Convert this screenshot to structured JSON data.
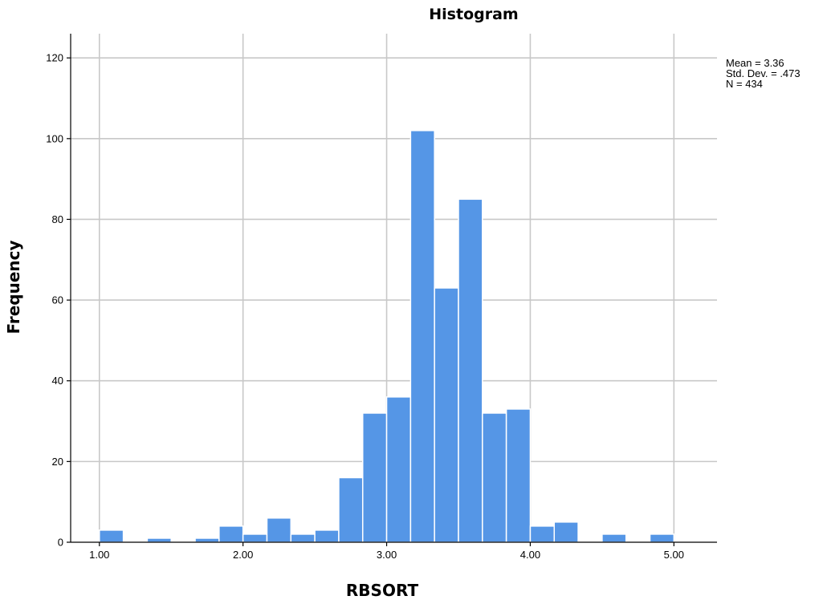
{
  "chart_data": {
    "type": "bar",
    "title": "Histogram",
    "xlabel": "RBSORT",
    "ylabel": "Frequency",
    "xlim": [
      0.8,
      5.3
    ],
    "ylim": [
      0,
      126
    ],
    "x_ticks": [
      1.0,
      2.0,
      3.0,
      4.0,
      5.0
    ],
    "x_tick_labels": [
      "1.00",
      "2.00",
      "3.00",
      "4.00",
      "5.00"
    ],
    "y_ticks": [
      0,
      20,
      40,
      60,
      80,
      100,
      120
    ],
    "y_tick_labels": [
      "0",
      "20",
      "40",
      "60",
      "80",
      "100",
      "120"
    ],
    "grid": true,
    "bar_color": "#5596e6",
    "bin_width": 0.1667,
    "bins": [
      {
        "start": 1.0,
        "end": 1.1667,
        "count": 3
      },
      {
        "start": 1.3333,
        "end": 1.5,
        "count": 1
      },
      {
        "start": 1.6667,
        "end": 1.8333,
        "count": 1
      },
      {
        "start": 1.8333,
        "end": 2.0,
        "count": 4
      },
      {
        "start": 2.0,
        "end": 2.1667,
        "count": 2
      },
      {
        "start": 2.1667,
        "end": 2.3333,
        "count": 6
      },
      {
        "start": 2.3333,
        "end": 2.5,
        "count": 2
      },
      {
        "start": 2.5,
        "end": 2.6667,
        "count": 3
      },
      {
        "start": 2.6667,
        "end": 2.8333,
        "count": 16
      },
      {
        "start": 2.8333,
        "end": 3.0,
        "count": 32
      },
      {
        "start": 3.0,
        "end": 3.1667,
        "count": 36
      },
      {
        "start": 3.1667,
        "end": 3.3333,
        "count": 102
      },
      {
        "start": 3.3333,
        "end": 3.5,
        "count": 63
      },
      {
        "start": 3.5,
        "end": 3.6667,
        "count": 85
      },
      {
        "start": 3.6667,
        "end": 3.8333,
        "count": 32
      },
      {
        "start": 3.8333,
        "end": 4.0,
        "count": 33
      },
      {
        "start": 4.0,
        "end": 4.1667,
        "count": 4
      },
      {
        "start": 4.1667,
        "end": 4.3333,
        "count": 5
      },
      {
        "start": 4.5,
        "end": 4.6667,
        "count": 2
      },
      {
        "start": 4.8333,
        "end": 5.0,
        "count": 2
      }
    ],
    "stats": {
      "mean": "Mean = 3.36",
      "std_dev": "Std. Dev. = .473",
      "n": "N = 434"
    },
    "legend_placement": "top-right"
  }
}
